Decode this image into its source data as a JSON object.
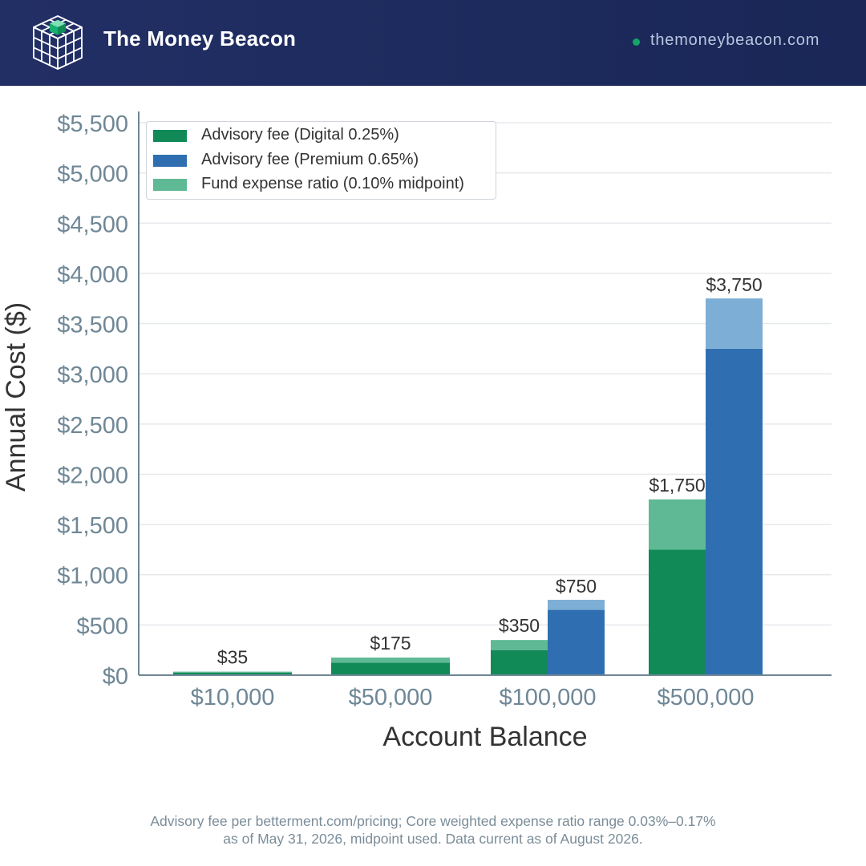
{
  "header": {
    "brand": "The Money Beacon",
    "site": "themoneybeacon.com",
    "logo_icon": "cube-grid-icon"
  },
  "colors": {
    "header_bg": "#1c2a5c",
    "digital_fee": "#118a58",
    "premium_fee": "#2f6fb1",
    "digital_expense": "#5fb994",
    "premium_expense": "#7daed5",
    "axis_text": "#6f8796",
    "accent_dot": "#15a56a"
  },
  "chart_data": {
    "type": "bar",
    "stacked": true,
    "grouped": true,
    "categories": [
      "$10,000",
      "$50,000",
      "$100,000",
      "$500,000"
    ],
    "xlabel": "Account Balance",
    "ylabel": "Annual Cost ($)",
    "ylim": [
      0,
      5500
    ],
    "yticks": [
      0,
      500,
      1000,
      1500,
      2000,
      2500,
      3000,
      3500,
      4000,
      4500,
      5000,
      5500
    ],
    "ytick_labels": [
      "$0",
      "$500",
      "$1,000",
      "$1,500",
      "$2,000",
      "$2,500",
      "$3,000",
      "$3,500",
      "$4,000",
      "$4,500",
      "$5,000",
      "$5,500"
    ],
    "grid": true,
    "legend_position": "top-left",
    "legend": [
      {
        "label": "Advisory fee (Digital 0.25%)",
        "color": "#118a58"
      },
      {
        "label": "Advisory fee (Premium 0.65%)",
        "color": "#2f6fb1"
      },
      {
        "label": "Fund expense ratio (0.10% midpoint)",
        "color": "#5fb994"
      }
    ],
    "series": [
      {
        "name": "Advisory fee (Digital 0.25%)",
        "plan": "Digital",
        "component": "fee",
        "values": [
          25,
          125,
          250,
          1250
        ]
      },
      {
        "name": "Fund expense ratio (0.10% midpoint)",
        "plan": "Digital",
        "component": "expense",
        "values": [
          10,
          50,
          100,
          500
        ]
      },
      {
        "name": "Advisory fee (Premium 0.65%)",
        "plan": "Premium",
        "component": "fee",
        "values": [
          null,
          null,
          650,
          3250
        ]
      },
      {
        "plan": "Premium",
        "component": "expense",
        "values": [
          null,
          null,
          100,
          500
        ]
      }
    ],
    "total_labels": {
      "Digital": [
        "$35",
        "$175",
        "$350",
        "$1,750"
      ],
      "Premium": [
        null,
        null,
        "$750",
        "$3,750"
      ]
    }
  },
  "footnote": {
    "line1": "Advisory fee per betterment.com/pricing; Core weighted expense ratio range 0.03%–0.17%",
    "line2": "as of May 31, 2026, midpoint used. Data current as of August 2026."
  }
}
